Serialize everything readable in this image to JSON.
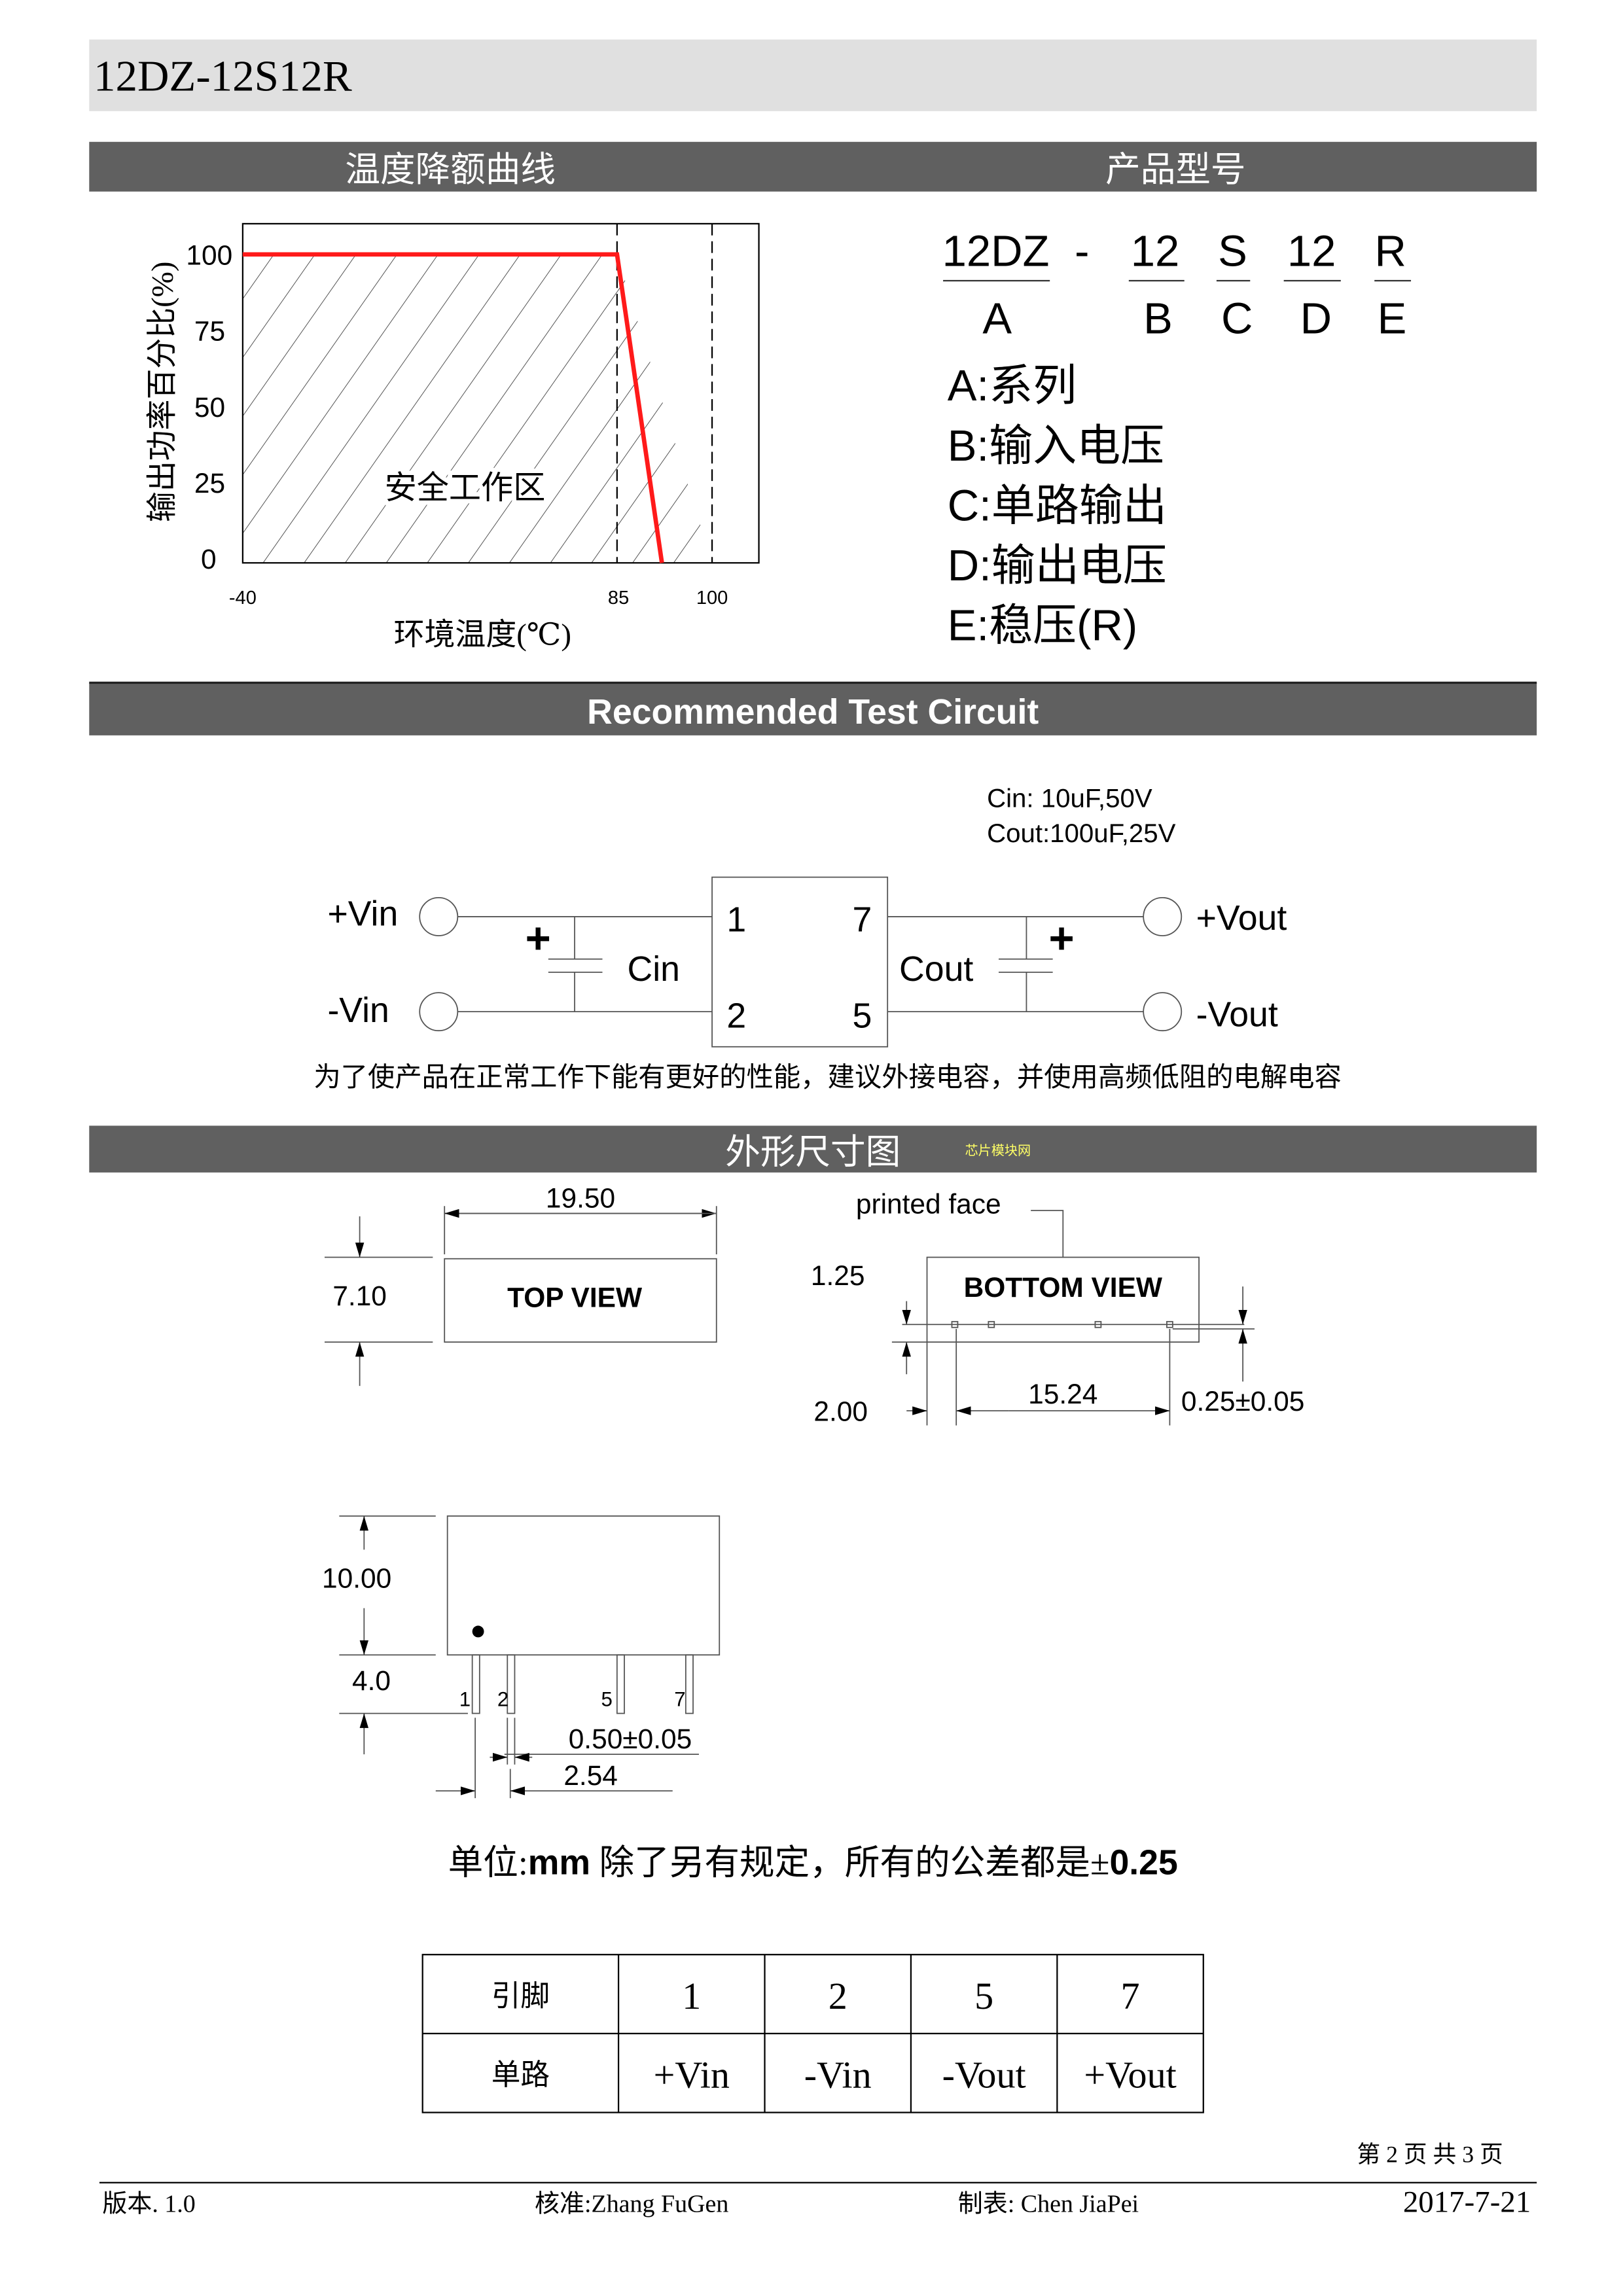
{
  "title": "12DZ-12S12R",
  "sections": {
    "derating": "温度降额曲线",
    "model": "产品型号",
    "circuit": "Recommended Test Circuit",
    "dimensions": "外形尺寸图",
    "watermark": "芯片模块网"
  },
  "colors": {
    "header_bg": "#606060",
    "title_bg": "#e0e0e0",
    "curve": "#ff1a1a"
  },
  "chart_data": {
    "type": "line",
    "xlabel": "环境温度(℃)",
    "ylabel": "输出功率百分比(%)",
    "x_ticks": [
      "-40",
      "85",
      "100"
    ],
    "y_ticks": [
      "0",
      "25",
      "50",
      "75",
      "100"
    ],
    "xlim": [
      -40,
      125
    ],
    "ylim": [
      0,
      110
    ],
    "series": [
      {
        "x": [
          -40,
          85,
          100
        ],
        "y": [
          100,
          100,
          0
        ]
      }
    ],
    "annotation": "安全工作区",
    "reference_lines_x": [
      85,
      100
    ],
    "grid": false
  },
  "model_code": {
    "parts": [
      "12DZ",
      "-",
      "12",
      "S",
      "12",
      "R"
    ],
    "letters": [
      "A",
      "B",
      "C",
      "D",
      "E"
    ],
    "legend": [
      "A:系列",
      "B:输入电压",
      "C:单路输出",
      "D:输出电压",
      "E:稳压(R)"
    ]
  },
  "circuit": {
    "cin_spec": "Cin: 10uF,50V",
    "cout_spec": "Cout:100uF,25V",
    "vin_pos": "+Vin",
    "vin_neg": "-Vin",
    "vout_pos": "+Vout",
    "vout_neg": "-Vout",
    "cin": "Cin",
    "cout": "Cout",
    "plus": "+",
    "pins": [
      "1",
      "7",
      "2",
      "5"
    ],
    "note": "为了使产品在正常工作下能有更好的性能，建议外接电容，并使用高频低阻的电解电容"
  },
  "dimensions": {
    "top_view": "TOP VIEW",
    "bottom_view": "BOTTOM VIEW",
    "printed_face": "printed face",
    "width": "19.50",
    "height": "7.10",
    "d125": "1.25",
    "d200": "2.00",
    "pitch_total": "15.24",
    "pin_thk": "0.25±0.05",
    "body_h": "10.00",
    "pin_len": "4.0",
    "pin_w": "0.50±0.05",
    "pitch": "2.54",
    "side_pins": [
      "1",
      "2",
      "5",
      "7"
    ],
    "units_a": "单位:",
    "units_b": "mm",
    "units_c": " 除了另有规定，所有的公差都是±",
    "units_d": "0.25"
  },
  "pin_table": {
    "headers": [
      "引脚",
      "1",
      "2",
      "5",
      "7"
    ],
    "row": [
      "单路",
      "+Vin",
      "-Vin",
      "-Vout",
      "+Vout"
    ]
  },
  "footer": {
    "page": "第 2 页 共 3 页",
    "version": "版本. 1.0",
    "approved": "核准:Zhang FuGen",
    "prepared": "制表: Chen JiaPei",
    "date": "2017-7-21"
  }
}
